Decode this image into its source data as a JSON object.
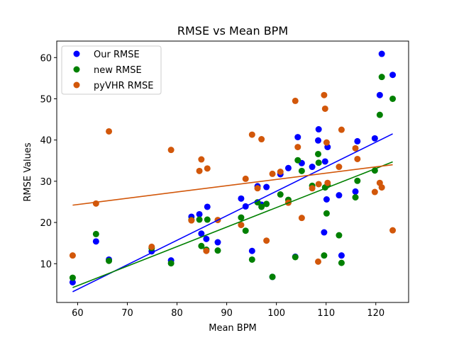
{
  "chart_data": {
    "type": "scatter",
    "title": "RMSE vs Mean BPM",
    "xlabel": "Mean BPM",
    "ylabel": "RMSE Values",
    "xlim": [
      55.8,
      126.6
    ],
    "ylim": [
      0.6,
      64.0
    ],
    "xticks": [
      60,
      70,
      80,
      90,
      100,
      110,
      120
    ],
    "yticks": [
      10,
      20,
      30,
      40,
      50,
      60
    ],
    "grid": false,
    "legend_position": "top-left",
    "series": [
      {
        "name": "Our RMSE",
        "color": "#0000ff",
        "x": [
          59.0,
          63.7,
          66.3,
          74.9,
          78.8,
          82.9,
          84.5,
          84.9,
          85.9,
          86.1,
          88.2,
          92.9,
          93.8,
          95.1,
          96.2,
          97.0,
          98.0,
          99.2,
          100.8,
          102.4,
          103.8,
          104.3,
          105.1,
          107.2,
          108.4,
          108.5,
          109.6,
          109.8,
          110.1,
          110.3,
          112.6,
          113.1,
          115.9,
          116.3,
          119.8,
          120.8,
          121.2,
          123.4
        ],
        "y": [
          5.5,
          15.4,
          11.0,
          13.0,
          10.8,
          21.4,
          22.0,
          17.3,
          16.0,
          23.8,
          15.2,
          25.8,
          23.9,
          13.1,
          28.8,
          24.3,
          28.6,
          6.8,
          31.7,
          33.2,
          11.7,
          40.7,
          34.4,
          33.5,
          39.9,
          42.6,
          17.6,
          34.8,
          25.6,
          38.3,
          26.6,
          12.0,
          27.5,
          39.7,
          40.4,
          50.9,
          60.9,
          55.8
        ],
        "trend": [
          [
            59.0,
            3.2
          ],
          [
            123.4,
            41.5
          ]
        ]
      },
      {
        "name": "new RMSE",
        "color": "#008000",
        "x": [
          59.0,
          63.7,
          66.3,
          74.9,
          78.8,
          82.9,
          84.5,
          84.9,
          85.9,
          86.1,
          88.2,
          92.9,
          93.8,
          95.1,
          96.2,
          97.0,
          98.0,
          99.2,
          100.8,
          102.4,
          103.8,
          104.3,
          105.1,
          107.2,
          108.4,
          108.5,
          109.6,
          109.8,
          110.1,
          110.3,
          112.6,
          113.1,
          115.9,
          116.3,
          119.8,
          120.8,
          121.2,
          123.4
        ],
        "y": [
          6.6,
          17.2,
          10.7,
          13.8,
          10.1,
          20.6,
          20.7,
          14.3,
          13.4,
          20.7,
          13.2,
          21.2,
          18.0,
          11.0,
          24.9,
          23.8,
          24.5,
          6.8,
          26.8,
          25.5,
          11.6,
          35.1,
          32.5,
          28.9,
          36.6,
          34.5,
          12.0,
          28.5,
          22.2,
          29.1,
          16.9,
          10.2,
          26.1,
          30.1,
          32.6,
          46.1,
          55.3,
          50.0
        ],
        "trend": [
          [
            59.0,
            4.2
          ],
          [
            123.4,
            34.7
          ]
        ]
      },
      {
        "name": "pyVHR RMSE",
        "color": "#d2570a",
        "x": [
          59.0,
          63.7,
          66.3,
          74.9,
          78.8,
          82.9,
          84.5,
          84.9,
          85.9,
          86.1,
          88.2,
          92.9,
          93.8,
          95.1,
          96.2,
          97.0,
          98.0,
          99.2,
          100.8,
          102.4,
          103.8,
          104.3,
          105.1,
          107.2,
          108.4,
          108.5,
          109.6,
          109.8,
          110.1,
          110.3,
          112.6,
          113.1,
          115.9,
          116.3,
          119.8,
          120.8,
          121.2,
          123.4
        ],
        "y": [
          12.0,
          24.6,
          42.1,
          14.1,
          37.6,
          20.5,
          32.5,
          35.3,
          13.1,
          33.1,
          20.6,
          19.4,
          30.6,
          41.3,
          28.3,
          40.2,
          15.6,
          31.8,
          32.3,
          24.8,
          49.5,
          38.3,
          21.1,
          28.3,
          10.5,
          29.3,
          50.9,
          47.6,
          39.4,
          29.6,
          33.5,
          42.5,
          38.0,
          35.4,
          27.4,
          29.6,
          28.5,
          18.1
        ],
        "trend": [
          [
            59.0,
            24.2
          ],
          [
            123.4,
            34.0
          ]
        ]
      }
    ]
  }
}
